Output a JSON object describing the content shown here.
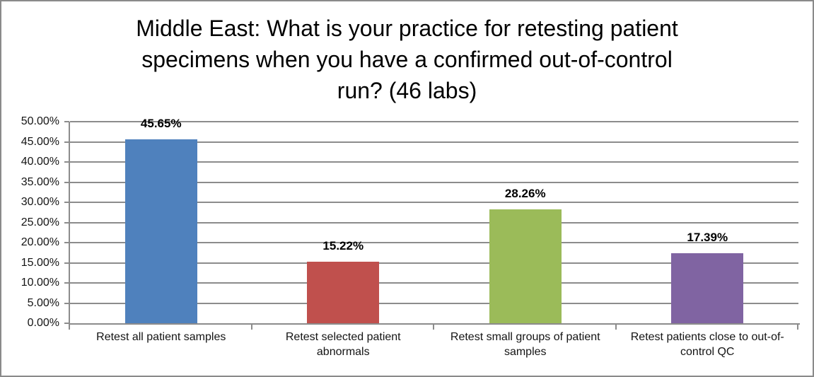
{
  "chart_data": {
    "type": "bar",
    "title": "Middle East: What is your practice for retesting patient specimens when you have a confirmed out-of-control run? (46 labs)",
    "title_lines": [
      "Middle East: What is your practice for retesting patient",
      "specimens when you have a confirmed out-of-control",
      "run? (46 labs)"
    ],
    "categories": [
      "Retest all patient samples",
      "Retest selected patient abnormals",
      "Retest small groups of patient samples",
      "Retest patients close to out-of-control QC"
    ],
    "values": [
      45.65,
      15.22,
      28.26,
      17.39
    ],
    "value_labels": [
      "45.65%",
      "15.22%",
      "28.26%",
      "17.39%"
    ],
    "bar_colors": [
      "#4f81bd",
      "#c0504d",
      "#9bbb59",
      "#8064a2"
    ],
    "xlabel": "",
    "ylabel": "",
    "ylim": [
      0,
      50
    ],
    "ytick_step": 5,
    "ytick_labels": [
      "0.00%",
      "5.00%",
      "10.00%",
      "15.00%",
      "20.00%",
      "25.00%",
      "30.00%",
      "35.00%",
      "40.00%",
      "45.00%",
      "50.00%"
    ],
    "grid": true,
    "legend": false,
    "gridline_color": "#8c8c8c",
    "axis_color": "#8c8c8c",
    "background_color": "#ffffff",
    "frame_border_color": "#8a8a8a"
  }
}
